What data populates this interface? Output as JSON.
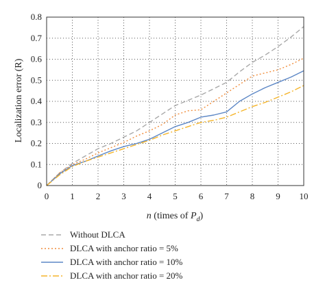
{
  "chart_data": {
    "type": "line",
    "title": "",
    "xlabel_var": "n",
    "xlabel_text": " (times of ",
    "xlabel_sym": "P",
    "xlabel_sub": "d",
    "xlabel_close": ")",
    "ylabel": "Localization error (R)",
    "xlim": [
      0,
      10
    ],
    "ylim": [
      0,
      0.8
    ],
    "xticks": [
      0,
      1,
      2,
      3,
      4,
      5,
      6,
      7,
      8,
      9,
      10
    ],
    "yticks": [
      0,
      0.1,
      0.2,
      0.3,
      0.4,
      0.5,
      0.6,
      0.7,
      0.8
    ],
    "ytick_labels": [
      "0",
      "0.1",
      "0.2",
      "0.3",
      "0.4",
      "0.5",
      "0.6",
      "0.7",
      "0.8"
    ],
    "grid": "dotted",
    "legend_position": "bottom",
    "x": [
      0,
      0.5,
      1,
      1.5,
      2,
      2.5,
      3,
      3.5,
      4,
      4.5,
      5,
      5.5,
      6,
      6.5,
      7,
      7.5,
      8,
      8.5,
      9,
      9.5,
      10
    ],
    "series": [
      {
        "name": "Without DLCA",
        "color": "#a8a8a8",
        "dash": "7,4",
        "values": [
          0,
          0.06,
          0.105,
          0.14,
          0.175,
          0.2,
          0.23,
          0.26,
          0.3,
          0.34,
          0.38,
          0.405,
          0.43,
          0.46,
          0.49,
          0.54,
          0.585,
          0.62,
          0.66,
          0.705,
          0.755
        ]
      },
      {
        "name": "DLCA with anchor ratio = 5%",
        "color": "#f08c3a",
        "dash": "2,3",
        "values": [
          0,
          0.06,
          0.1,
          0.125,
          0.155,
          0.18,
          0.205,
          0.235,
          0.26,
          0.29,
          0.335,
          0.355,
          0.36,
          0.4,
          0.44,
          0.48,
          0.52,
          0.535,
          0.55,
          0.575,
          0.605
        ]
      },
      {
        "name": "DLCA with anchor ratio = 10%",
        "color": "#5b86c5",
        "dash": "",
        "values": [
          0,
          0.055,
          0.095,
          0.115,
          0.14,
          0.165,
          0.185,
          0.2,
          0.22,
          0.25,
          0.28,
          0.3,
          0.325,
          0.335,
          0.35,
          0.4,
          0.435,
          0.465,
          0.49,
          0.515,
          0.545
        ]
      },
      {
        "name": "DLCA with anchor ratio = 20%",
        "color": "#f5b428",
        "dash": "9,3,2,3",
        "values": [
          0,
          0.05,
          0.09,
          0.115,
          0.135,
          0.155,
          0.175,
          0.195,
          0.215,
          0.24,
          0.26,
          0.28,
          0.3,
          0.31,
          0.325,
          0.35,
          0.375,
          0.395,
          0.42,
          0.445,
          0.475
        ]
      }
    ]
  }
}
